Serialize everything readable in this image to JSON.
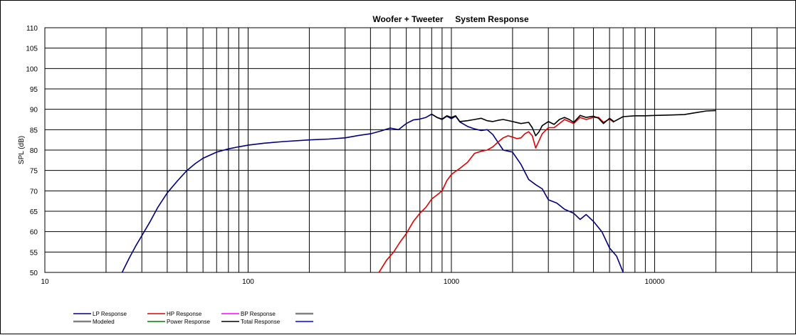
{
  "chart_data": {
    "type": "line",
    "title": "Woofer + Tweeter     System Response",
    "xlabel": "",
    "ylabel": "SPL (dB)",
    "xscale": "log",
    "xlim": [
      10,
      50000
    ],
    "ylim": [
      50,
      110
    ],
    "grid": true,
    "legend_position": "bottom",
    "x_tick_labels": [
      "10",
      "100",
      "1000",
      "10000"
    ],
    "y_ticks": [
      50,
      55,
      60,
      65,
      70,
      75,
      80,
      85,
      90,
      95,
      100,
      105,
      110
    ],
    "legend": [
      {
        "name": "LP Response",
        "color": "#000080"
      },
      {
        "name": "HP Response",
        "color": "#e00000"
      },
      {
        "name": "BP Response",
        "color": "#ff00ff"
      },
      {
        "name": "",
        "color": "#808080"
      },
      {
        "name": "Modeled",
        "color": "#808080"
      },
      {
        "name": "Power Response",
        "color": "#008000"
      },
      {
        "name": "Total Response",
        "color": "#000000"
      },
      {
        "name": "",
        "color": "#0000ff"
      }
    ],
    "series": [
      {
        "name": "LP Response",
        "color": "#000080",
        "x": [
          24,
          26,
          28,
          30,
          33,
          36,
          40,
          45,
          50,
          55,
          60,
          70,
          80,
          90,
          100,
          120,
          150,
          200,
          250,
          300,
          350,
          400,
          450,
          500,
          550,
          600,
          650,
          700,
          750,
          800,
          850,
          900,
          950,
          1000,
          1050,
          1100,
          1200,
          1300,
          1400,
          1500,
          1600,
          1700,
          1800,
          2000,
          2200,
          2400,
          2600,
          2800,
          3000,
          3300,
          3600,
          4000,
          4300,
          4600,
          5000,
          5500,
          6000,
          6500,
          7000
        ],
        "y": [
          50.0,
          53.5,
          56.5,
          59.0,
          62.5,
          66.0,
          69.5,
          72.5,
          75.0,
          76.7,
          78.0,
          79.5,
          80.3,
          80.8,
          81.2,
          81.7,
          82.1,
          82.5,
          82.7,
          83.0,
          83.6,
          84.0,
          84.7,
          85.4,
          85.0,
          86.5,
          87.4,
          87.6,
          88.0,
          88.8,
          88.0,
          87.5,
          88.3,
          87.7,
          88.3,
          86.9,
          85.8,
          85.2,
          84.8,
          85.0,
          83.8,
          81.8,
          80.0,
          79.5,
          76.5,
          72.8,
          71.5,
          70.5,
          67.8,
          67.0,
          65.5,
          64.5,
          63.0,
          64.2,
          62.5,
          60.0,
          56.0,
          54.0,
          50.0
        ]
      },
      {
        "name": "HP Response",
        "color": "#e00000",
        "x": [
          440,
          480,
          520,
          560,
          600,
          650,
          700,
          750,
          800,
          850,
          900,
          950,
          1000,
          1050,
          1100,
          1200,
          1300,
          1400,
          1500,
          1600,
          1700,
          1800,
          1900,
          2000,
          2100,
          2200,
          2300,
          2400,
          2500,
          2600,
          2700,
          2800,
          3000,
          3200,
          3400,
          3600,
          3800,
          4000,
          4300,
          4600,
          5000,
          5300,
          5600,
          6000,
          6300
        ],
        "y": [
          50.0,
          53.0,
          55.0,
          57.5,
          59.5,
          62.5,
          64.5,
          66.0,
          68.0,
          69.0,
          70.0,
          72.5,
          74.0,
          74.8,
          75.5,
          77.0,
          79.2,
          79.7,
          80.0,
          80.8,
          82.0,
          83.0,
          83.5,
          83.2,
          82.8,
          83.0,
          84.0,
          84.5,
          83.5,
          80.5,
          82.3,
          84.0,
          85.5,
          85.5,
          86.5,
          87.5,
          87.0,
          86.5,
          88.0,
          87.5,
          88.0,
          88.0,
          86.8,
          87.6,
          86.8
        ]
      },
      {
        "name": "Total Response",
        "color": "#000000",
        "x": [
          800,
          850,
          900,
          950,
          1000,
          1050,
          1100,
          1200,
          1300,
          1400,
          1500,
          1600,
          1700,
          1800,
          2000,
          2200,
          2400,
          2500,
          2600,
          2700,
          2800,
          3000,
          3200,
          3400,
          3600,
          3800,
          4000,
          4300,
          4600,
          5000,
          5300,
          5600,
          6000,
          6300,
          7000,
          8000,
          9000,
          10000,
          12000,
          14000,
          16000,
          18000,
          20000
        ],
        "y": [
          88.8,
          88.0,
          87.6,
          88.4,
          88.0,
          88.4,
          87.0,
          87.2,
          87.5,
          87.8,
          87.2,
          87.0,
          87.3,
          87.5,
          87.0,
          86.5,
          86.8,
          85.5,
          83.5,
          84.5,
          86.0,
          87.0,
          86.3,
          87.5,
          88.0,
          87.5,
          86.8,
          88.5,
          88.0,
          88.3,
          87.8,
          86.5,
          87.8,
          87.0,
          88.2,
          88.4,
          88.4,
          88.5,
          88.6,
          88.7,
          89.2,
          89.6,
          89.7
        ]
      }
    ]
  }
}
